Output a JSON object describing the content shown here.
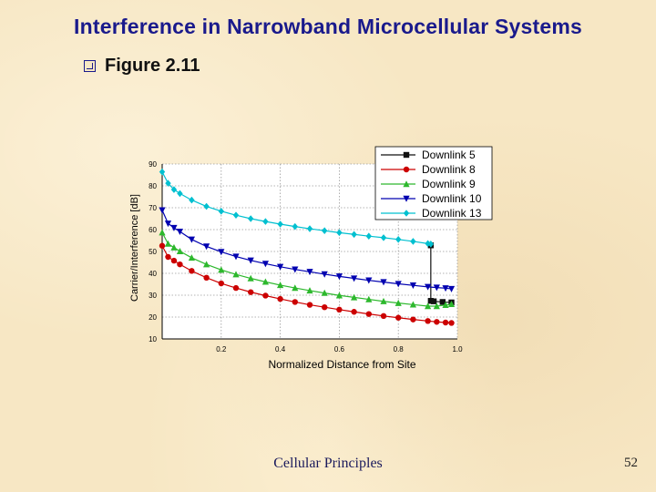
{
  "slide": {
    "title": "Interference in Narrowband Microcellular Systems",
    "bullet": "Figure 2.11",
    "footer": "Cellular Principles",
    "page_number": "52"
  },
  "chart_data": {
    "type": "line",
    "title": "",
    "xlabel": "Normalized Distance from Site",
    "ylabel": "Carrier/Interference [dB]",
    "xlim": [
      0.0,
      1.0
    ],
    "ylim": [
      10,
      90
    ],
    "x_ticks": [
      "0.2",
      "0.4",
      "0.6",
      "0.8",
      "1.0"
    ],
    "x_tick_values": [
      0.2,
      0.4,
      0.6,
      0.8,
      1.0
    ],
    "y_ticks": [
      "10",
      "20",
      "30",
      "40",
      "50",
      "60",
      "70",
      "80",
      "90"
    ],
    "y_tick_values": [
      10,
      20,
      30,
      40,
      50,
      60,
      70,
      80,
      90
    ],
    "grid": true,
    "legend_position": "top-right",
    "series": [
      {
        "name": "Downlink 5",
        "color": "#111111",
        "marker": "square",
        "points": [
          [
            0.91,
            52.8
          ],
          [
            0.91,
            27.4
          ],
          [
            0.92,
            27.2
          ],
          [
            0.95,
            26.9
          ],
          [
            0.98,
            26.7
          ]
        ]
      },
      {
        "name": "Downlink 8",
        "color": "#cc0000",
        "marker": "circle",
        "points": [
          [
            0.0,
            52.6
          ],
          [
            0.02,
            47.5
          ],
          [
            0.04,
            45.8
          ],
          [
            0.06,
            44.1
          ],
          [
            0.1,
            41.1
          ],
          [
            0.15,
            38.0
          ],
          [
            0.2,
            35.4
          ],
          [
            0.25,
            33.3
          ],
          [
            0.3,
            31.4
          ],
          [
            0.35,
            29.8
          ],
          [
            0.4,
            28.3
          ],
          [
            0.45,
            26.9
          ],
          [
            0.5,
            25.6
          ],
          [
            0.55,
            24.5
          ],
          [
            0.6,
            23.4
          ],
          [
            0.65,
            22.4
          ],
          [
            0.7,
            21.4
          ],
          [
            0.75,
            20.5
          ],
          [
            0.8,
            19.7
          ],
          [
            0.85,
            18.9
          ],
          [
            0.9,
            18.2
          ],
          [
            0.93,
            17.8
          ],
          [
            0.96,
            17.5
          ],
          [
            0.98,
            17.3
          ]
        ]
      },
      {
        "name": "Downlink 9",
        "color": "#2db82d",
        "marker": "triangle-up",
        "points": [
          [
            0.0,
            58.7
          ],
          [
            0.02,
            53.5
          ],
          [
            0.04,
            51.8
          ],
          [
            0.06,
            50.1
          ],
          [
            0.1,
            47.1
          ],
          [
            0.15,
            44.1
          ],
          [
            0.2,
            41.6
          ],
          [
            0.25,
            39.5
          ],
          [
            0.3,
            37.7
          ],
          [
            0.35,
            36.1
          ],
          [
            0.4,
            34.6
          ],
          [
            0.45,
            33.3
          ],
          [
            0.5,
            32.1
          ],
          [
            0.55,
            31.0
          ],
          [
            0.6,
            29.9
          ],
          [
            0.65,
            29.0
          ],
          [
            0.7,
            28.1
          ],
          [
            0.75,
            27.2
          ],
          [
            0.8,
            26.4
          ],
          [
            0.85,
            25.7
          ],
          [
            0.9,
            25.0
          ],
          [
            0.93,
            25.0
          ],
          [
            0.96,
            25.5
          ],
          [
            0.98,
            25.9
          ]
        ]
      },
      {
        "name": "Downlink 10",
        "color": "#0000b0",
        "marker": "triangle-down",
        "points": [
          [
            0.0,
            68.9
          ],
          [
            0.02,
            62.8
          ],
          [
            0.04,
            60.8
          ],
          [
            0.06,
            59.1
          ],
          [
            0.1,
            55.5
          ],
          [
            0.15,
            52.3
          ],
          [
            0.2,
            49.8
          ],
          [
            0.25,
            47.7
          ],
          [
            0.3,
            45.9
          ],
          [
            0.35,
            44.4
          ],
          [
            0.4,
            43.0
          ],
          [
            0.45,
            41.8
          ],
          [
            0.5,
            40.7
          ],
          [
            0.55,
            39.6
          ],
          [
            0.6,
            38.6
          ],
          [
            0.65,
            37.7
          ],
          [
            0.7,
            36.8
          ],
          [
            0.75,
            36.0
          ],
          [
            0.8,
            35.2
          ],
          [
            0.85,
            34.5
          ],
          [
            0.9,
            33.8
          ],
          [
            0.93,
            33.5
          ],
          [
            0.96,
            33.2
          ],
          [
            0.98,
            32.9
          ]
        ]
      },
      {
        "name": "Downlink 13",
        "color": "#00c0d0",
        "marker": "diamond",
        "points": [
          [
            0.0,
            86.4
          ],
          [
            0.02,
            81.2
          ],
          [
            0.04,
            78.3
          ],
          [
            0.06,
            76.5
          ],
          [
            0.1,
            73.5
          ],
          [
            0.15,
            70.6
          ],
          [
            0.2,
            68.4
          ],
          [
            0.25,
            66.6
          ],
          [
            0.3,
            65.0
          ],
          [
            0.35,
            63.7
          ],
          [
            0.4,
            62.5
          ],
          [
            0.45,
            61.4
          ],
          [
            0.5,
            60.4
          ],
          [
            0.55,
            59.5
          ],
          [
            0.6,
            58.6
          ],
          [
            0.65,
            57.8
          ],
          [
            0.7,
            57.0
          ],
          [
            0.75,
            56.3
          ],
          [
            0.8,
            55.5
          ],
          [
            0.85,
            54.6
          ],
          [
            0.9,
            53.6
          ],
          [
            0.91,
            53.4
          ]
        ]
      }
    ]
  }
}
